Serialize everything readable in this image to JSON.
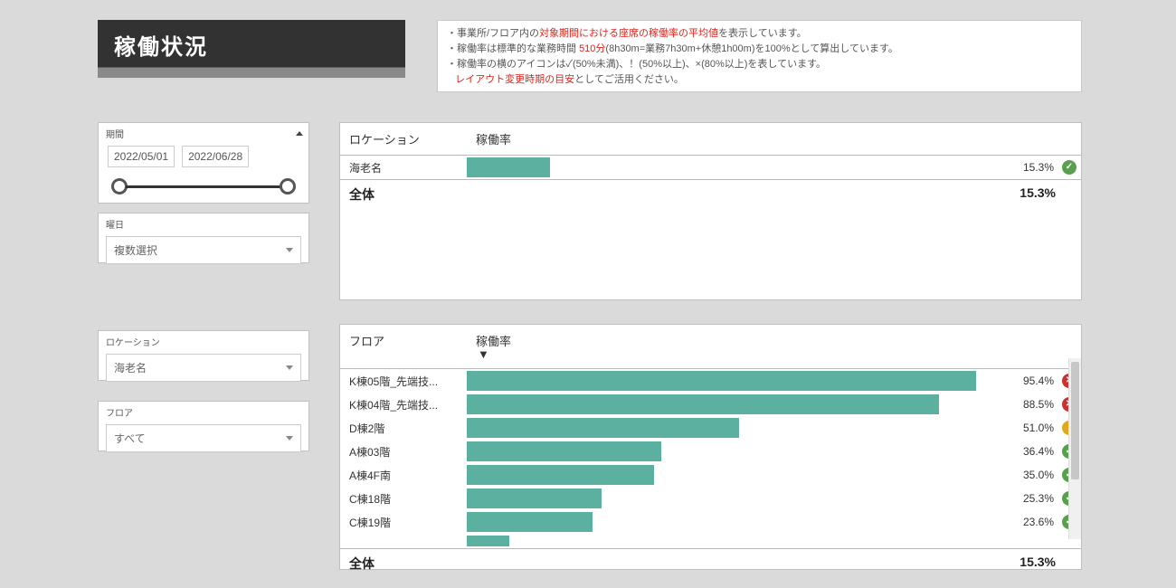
{
  "title": "稼働状況",
  "info": {
    "line1_pre": "・事業所/フロア内の",
    "line1_red": "対象期間における座席の稼働率の平均値",
    "line1_post": "を表示しています。",
    "line2_pre": "・稼働率は標準的な業務時間 ",
    "line2_red": "510分",
    "line2_post": "(8h30m=業務7h30m+休憩1h00m)を100%として算出しています。",
    "line3": "・稼働率の横のアイコンは✓(50%未満)、！(50%以上)、×(80%以上)を表しています。",
    "line4_red": "レイアウト変更時期の目安",
    "line4_post": "としてご活用ください。"
  },
  "filters": {
    "period_label": "期間",
    "date_start": "2022/05/01",
    "date_end": "2022/06/28",
    "weekday_label": "曜日",
    "weekday_value": "複数選択",
    "location_label": "ロケーション",
    "location_value": "海老名",
    "floor_label": "フロア",
    "floor_value": "すべて"
  },
  "colors": {
    "bar": "#5bb0a0",
    "icon_green": "#5a9e4f",
    "icon_yellow": "#e0aa1e",
    "icon_red": "#c73232"
  },
  "locationChart": {
    "header_col1": "ロケーション",
    "header_col2": "稼働率",
    "max": 100,
    "rows": [
      {
        "label": "海老名",
        "value": 15.3,
        "valueText": "15.3%",
        "status": "green"
      }
    ],
    "total_label": "全体",
    "total_value": "15.3%"
  },
  "floorChart": {
    "header_col1": "フロア",
    "header_col2": "稼働率",
    "max": 100,
    "rows": [
      {
        "label": "K棟05階_先端技...",
        "value": 95.4,
        "valueText": "95.4%",
        "status": "red"
      },
      {
        "label": "K棟04階_先端技...",
        "value": 88.5,
        "valueText": "88.5%",
        "status": "red"
      },
      {
        "label": "D棟2階",
        "value": 51.0,
        "valueText": "51.0%",
        "status": "yellow"
      },
      {
        "label": "A棟03階",
        "value": 36.4,
        "valueText": "36.4%",
        "status": "green"
      },
      {
        "label": "A棟4F南",
        "value": 35.0,
        "valueText": "35.0%",
        "status": "green"
      },
      {
        "label": "C棟18階",
        "value": 25.3,
        "valueText": "25.3%",
        "status": "green"
      },
      {
        "label": "C棟19階",
        "value": 23.6,
        "valueText": "23.6%",
        "status": "green"
      }
    ],
    "partial_bar_value": 8,
    "total_label": "全体",
    "total_value": "15.3%"
  }
}
